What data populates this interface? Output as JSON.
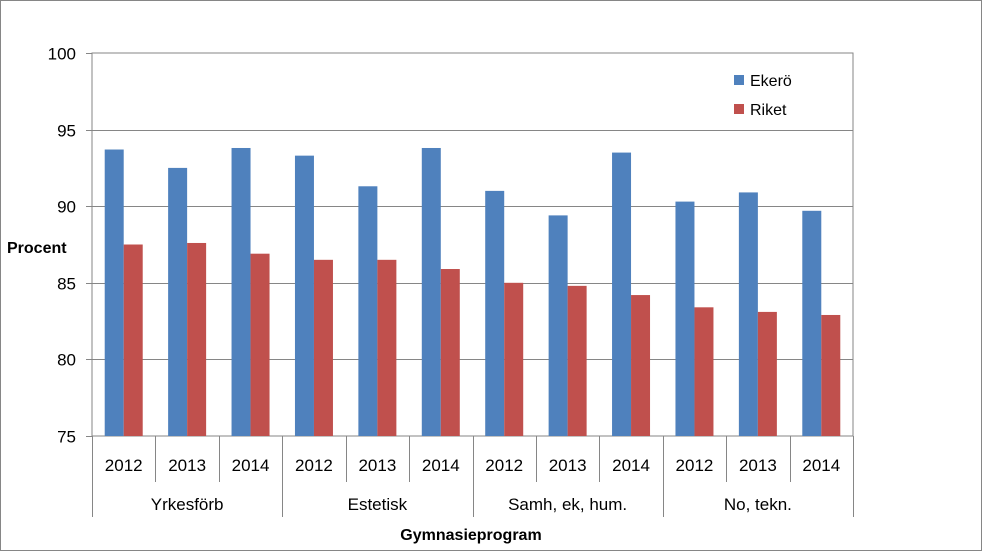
{
  "chart_data": {
    "type": "bar",
    "xlabel": "Gymnasieprogram",
    "ylabel": "Procent",
    "ylim": [
      75,
      100
    ],
    "yticks": [
      75,
      80,
      85,
      90,
      95,
      100
    ],
    "grid": true,
    "legend_position": "top-right",
    "groups": [
      {
        "label": "Yrkesförb",
        "categories": [
          "2012",
          "2013",
          "2014"
        ]
      },
      {
        "label": "Estetisk",
        "categories": [
          "2012",
          "2013",
          "2014"
        ]
      },
      {
        "label": "Samh, ek, hum.",
        "categories": [
          "2012",
          "2013",
          "2014"
        ]
      },
      {
        "label": "No, tekn.",
        "categories": [
          "2012",
          "2013",
          "2014"
        ]
      }
    ],
    "series": [
      {
        "name": "Ekerö",
        "color": "#4F81BD",
        "values": [
          93.7,
          92.5,
          93.8,
          93.3,
          91.3,
          93.8,
          91.0,
          89.4,
          93.5,
          90.3,
          90.9,
          89.7
        ]
      },
      {
        "name": "Riket",
        "color": "#C0504D",
        "values": [
          87.5,
          87.6,
          86.9,
          86.5,
          86.5,
          85.9,
          85.0,
          84.8,
          84.2,
          83.4,
          83.1,
          82.9
        ]
      }
    ]
  }
}
